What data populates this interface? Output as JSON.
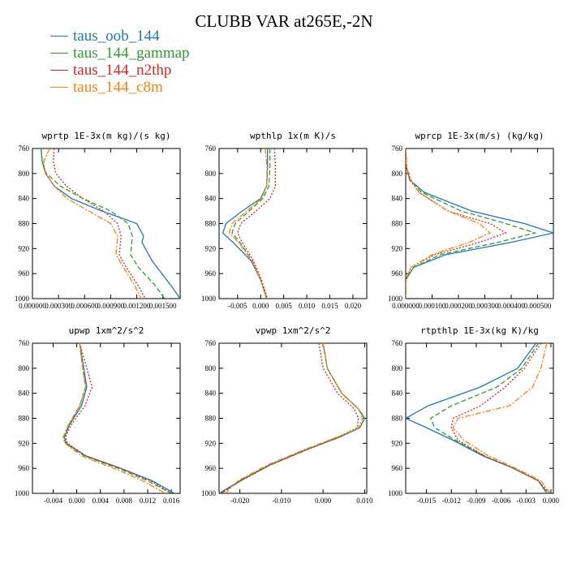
{
  "title": "CLUBB VAR at265E,-2N",
  "legend": [
    {
      "name": "taus_oob_144",
      "color": "#1f77b4",
      "dash": "solid"
    },
    {
      "name": "taus_144_gammap",
      "color": "#2ca02c",
      "dash": "dashed"
    },
    {
      "name": "taus_144_n2thp",
      "color": "#d62728",
      "dash": "dotted"
    },
    {
      "name": "taus_144_c8m",
      "color": "#ff7f0e",
      "dash": "dashdot"
    }
  ],
  "chart_data": [
    {
      "type": "line",
      "title": "wprtp   1E-3x(m kg)/(s kg)",
      "xlim": [
        0.0,
        0.0017
      ],
      "ylim": [
        760,
        1000
      ],
      "xticks": [
        0.0,
        0.0003,
        0.0006,
        0.0009,
        0.0012,
        0.0015
      ],
      "xticklabels": [
        "0.000000",
        "0.000300",
        "0.000600",
        "0.000900",
        "0.001200",
        "0.001500"
      ],
      "yticks": [
        760,
        800,
        840,
        880,
        920,
        960,
        1000
      ],
      "yticklabels": [
        "760",
        "800",
        "840",
        "880",
        "920",
        "960",
        "1000"
      ],
      "series": [
        {
          "name": "taus_oob_144",
          "x": [
            0.0001,
            0.00011,
            0.00015,
            0.00025,
            0.00045,
            0.0008,
            0.0012,
            0.00128,
            0.00126,
            0.00138,
            0.0016,
            0.0017
          ],
          "y": [
            760,
            780,
            800,
            820,
            840,
            860,
            880,
            900,
            910,
            940,
            980,
            1000
          ]
        },
        {
          "name": "taus_144_gammap",
          "x": [
            0.0001,
            0.00011,
            0.00016,
            0.00032,
            0.00058,
            0.0009,
            0.0011,
            0.00115,
            0.00113,
            0.00122,
            0.00142,
            0.00152
          ],
          "y": [
            760,
            780,
            800,
            820,
            840,
            860,
            880,
            900,
            930,
            950,
            980,
            1000
          ]
        },
        {
          "name": "taus_144_n2thp",
          "x": [
            0.00025,
            0.00024,
            0.00027,
            0.00039,
            0.00058,
            0.00082,
            0.00098,
            0.00102,
            0.001,
            0.00108,
            0.00122,
            0.0013
          ],
          "y": [
            760,
            780,
            800,
            820,
            840,
            860,
            880,
            900,
            930,
            950,
            980,
            1000
          ]
        },
        {
          "name": "taus_144_c8m",
          "x": [
            0.0002,
            0.00013,
            0.00015,
            0.00025,
            0.0004,
            0.00065,
            0.0009,
            0.00098,
            0.00096,
            0.00105,
            0.00118,
            0.00125
          ],
          "y": [
            760,
            780,
            800,
            820,
            840,
            860,
            880,
            900,
            930,
            950,
            980,
            1000
          ]
        }
      ]
    },
    {
      "type": "line",
      "title": "wpthlp   1x(m K)/s",
      "xlim": [
        -0.009,
        0.023
      ],
      "ylim": [
        760,
        1000
      ],
      "xticks": [
        -0.005,
        0.0,
        0.005,
        0.01,
        0.015,
        0.02
      ],
      "xticklabels": [
        "-0.005",
        "0.000",
        "0.005",
        "0.010",
        "0.015",
        "0.020"
      ],
      "yticks": [
        760,
        800,
        840,
        880,
        920,
        960,
        1000
      ],
      "yticklabels": [
        "760",
        "800",
        "840",
        "880",
        "920",
        "960",
        "1000"
      ],
      "series": [
        {
          "name": "taus_oob_144",
          "x": [
            0.0015,
            0.0015,
            0.0013,
            0.0,
            -0.004,
            -0.0075,
            -0.0082,
            -0.006,
            -0.002,
            0.0,
            0.0013
          ],
          "y": [
            760,
            790,
            820,
            840,
            860,
            880,
            895,
            910,
            940,
            970,
            1000
          ]
        },
        {
          "name": "taus_144_gammap",
          "x": [
            0.002,
            0.002,
            0.0018,
            0.0005,
            -0.0025,
            -0.0055,
            -0.0062,
            -0.0045,
            -0.0018,
            0.0,
            0.0013
          ],
          "y": [
            760,
            790,
            820,
            840,
            860,
            880,
            895,
            910,
            940,
            970,
            1000
          ]
        },
        {
          "name": "taus_144_n2thp",
          "x": [
            0.003,
            0.0032,
            0.0032,
            0.002,
            -0.001,
            -0.0043,
            -0.005,
            -0.004,
            -0.0015,
            0.0002,
            0.0015
          ],
          "y": [
            760,
            790,
            820,
            840,
            860,
            880,
            895,
            910,
            940,
            970,
            1000
          ]
        },
        {
          "name": "taus_144_c8m",
          "x": [
            0.001,
            0.0014,
            0.0013,
            0.0002,
            -0.003,
            -0.0062,
            -0.0068,
            -0.0048,
            -0.0018,
            0.0,
            0.0013
          ],
          "y": [
            760,
            790,
            820,
            840,
            860,
            880,
            895,
            910,
            940,
            970,
            1000
          ]
        }
      ]
    },
    {
      "type": "line",
      "title": "wprcp   1E-3x(m/s) (kg/kg)",
      "xlim": [
        0.0,
        0.00056
      ],
      "ylim": [
        760,
        1000
      ],
      "xticks": [
        0.0,
        0.0001,
        0.0002,
        0.0003,
        0.0004,
        0.0005
      ],
      "xticklabels": [
        "0.000000",
        "0.000100",
        "0.000200",
        "0.000300",
        "0.000400",
        "0.000500"
      ],
      "yticks": [
        760,
        800,
        840,
        880,
        920,
        960,
        1000
      ],
      "yticklabels": [
        "760",
        "800",
        "840",
        "880",
        "920",
        "960",
        "1000"
      ],
      "series": [
        {
          "name": "taus_oob_144",
          "x": [
            0.0,
            3e-06,
            1.5e-05,
            7e-05,
            0.00025,
            0.00045,
            0.00056,
            0.0004,
            0.00015,
            3e-05,
            0.0,
            0.0
          ],
          "y": [
            760,
            790,
            810,
            830,
            860,
            880,
            895,
            910,
            930,
            950,
            970,
            1000
          ]
        },
        {
          "name": "taus_144_gammap",
          "x": [
            0.0,
            3e-06,
            1.5e-05,
            6e-05,
            0.00021,
            0.00038,
            0.00049,
            0.00035,
            0.00013,
            3e-05,
            0.0,
            0.0
          ],
          "y": [
            760,
            790,
            810,
            830,
            860,
            880,
            895,
            910,
            930,
            950,
            970,
            1000
          ]
        },
        {
          "name": "taus_144_n2thp",
          "x": [
            0.0,
            3e-06,
            1.5e-05,
            5e-05,
            0.00016,
            0.00032,
            0.00038,
            0.00028,
            0.00011,
            2e-05,
            0.0,
            0.0
          ],
          "y": [
            760,
            790,
            810,
            830,
            860,
            880,
            895,
            910,
            930,
            950,
            970,
            1000
          ]
        },
        {
          "name": "taus_144_c8m",
          "x": [
            0.0,
            3e-06,
            2e-05,
            5e-05,
            0.00016,
            0.00028,
            0.00032,
            0.00024,
            0.0001,
            2e-05,
            0.0,
            0.0
          ],
          "y": [
            760,
            790,
            810,
            830,
            860,
            880,
            895,
            910,
            930,
            950,
            970,
            1000
          ]
        }
      ]
    },
    {
      "type": "line",
      "title": "upwp   1xm^2/s^2",
      "xlim": [
        -0.0075,
        0.0175
      ],
      "ylim": [
        760,
        1000
      ],
      "xticks": [
        -0.004,
        0.0,
        0.004,
        0.008,
        0.012,
        0.016
      ],
      "xticklabels": [
        "-0.004",
        "0.000",
        "0.004",
        "0.008",
        "0.012",
        "0.016"
      ],
      "yticks": [
        760,
        800,
        840,
        880,
        920,
        960,
        1000
      ],
      "yticklabels": [
        "760",
        "800",
        "840",
        "880",
        "920",
        "960",
        "1000"
      ],
      "series": [
        {
          "name": "taus_oob_144",
          "x": [
            0.0005,
            0.0012,
            0.0017,
            0.0008,
            -0.0012,
            -0.0021,
            -0.0018,
            0.0015,
            0.0075,
            0.0128,
            0.0165
          ],
          "y": [
            760,
            800,
            830,
            860,
            890,
            910,
            920,
            940,
            960,
            980,
            1000
          ]
        },
        {
          "name": "taus_144_gammap",
          "x": [
            0.0005,
            0.001,
            0.0015,
            0.0005,
            -0.0013,
            -0.0022,
            -0.0019,
            0.0013,
            0.007,
            0.012,
            0.016
          ],
          "y": [
            760,
            800,
            830,
            860,
            890,
            910,
            920,
            940,
            960,
            980,
            1000
          ]
        },
        {
          "name": "taus_144_n2thp",
          "x": [
            0.0005,
            0.0017,
            0.0026,
            0.0014,
            -0.0009,
            -0.0019,
            -0.0016,
            0.0016,
            0.0074,
            0.0125,
            0.016
          ],
          "y": [
            760,
            800,
            830,
            860,
            890,
            910,
            920,
            940,
            960,
            980,
            1000
          ]
        },
        {
          "name": "taus_144_c8m",
          "x": [
            0.0005,
            0.001,
            0.0015,
            0.0005,
            -0.0014,
            -0.0023,
            -0.002,
            0.0008,
            0.0063,
            0.0112,
            0.015
          ],
          "y": [
            760,
            800,
            830,
            860,
            890,
            910,
            920,
            940,
            960,
            980,
            1000
          ]
        }
      ]
    },
    {
      "type": "line",
      "title": "vpwp   1xm^2/s^2",
      "xlim": [
        -0.025,
        0.0105
      ],
      "ylim": [
        760,
        1000
      ],
      "xticks": [
        -0.02,
        -0.01,
        0.0,
        0.01
      ],
      "xticklabels": [
        "-0.020",
        "-0.010",
        "0.000",
        "0.010"
      ],
      "yticks": [
        760,
        800,
        840,
        880,
        920,
        960,
        1000
      ],
      "yticklabels": [
        "760",
        "800",
        "840",
        "880",
        "920",
        "960",
        "1000"
      ],
      "series": [
        {
          "name": "taus_oob_144",
          "x": [
            0.0,
            0.001,
            0.0045,
            0.0085,
            0.01,
            0.0088,
            0.004,
            -0.004,
            -0.013,
            -0.02,
            -0.025
          ],
          "y": [
            760,
            800,
            840,
            865,
            880,
            895,
            910,
            930,
            955,
            980,
            1000
          ]
        },
        {
          "name": "taus_144_gammap",
          "x": [
            0.0,
            0.001,
            0.0045,
            0.0085,
            0.01,
            0.0088,
            0.004,
            -0.0038,
            -0.0128,
            -0.0198,
            -0.0245
          ],
          "y": [
            760,
            800,
            840,
            865,
            880,
            895,
            910,
            930,
            955,
            980,
            1000
          ]
        },
        {
          "name": "taus_144_n2thp",
          "x": [
            -0.001,
            0.0,
            0.0035,
            0.0075,
            0.0085,
            0.0082,
            0.0035,
            -0.0038,
            -0.0128,
            -0.0198,
            -0.0245
          ],
          "y": [
            760,
            800,
            840,
            865,
            880,
            895,
            910,
            930,
            955,
            980,
            1000
          ]
        },
        {
          "name": "taus_144_c8m",
          "x": [
            0.0,
            0.001,
            0.0045,
            0.0085,
            0.0095,
            0.0085,
            0.0035,
            -0.0045,
            -0.0135,
            -0.0205,
            -0.0235
          ],
          "y": [
            760,
            800,
            840,
            865,
            880,
            895,
            910,
            930,
            955,
            980,
            1000
          ]
        }
      ]
    },
    {
      "type": "line",
      "title": "rtpthlp   1E-3x(kg K)/kg",
      "xlim": [
        -0.0175,
        0.0003
      ],
      "ylim": [
        760,
        1000
      ],
      "xticks": [
        -0.015,
        -0.012,
        -0.009,
        -0.006,
        -0.003,
        0.0
      ],
      "xticklabels": [
        "-0.015",
        "-0.012",
        "-0.009",
        "-0.006",
        "-0.003",
        "0.000"
      ],
      "yticks": [
        760,
        800,
        840,
        880,
        920,
        960,
        1000
      ],
      "yticklabels": [
        "760",
        "800",
        "840",
        "880",
        "920",
        "960",
        "1000"
      ],
      "series": [
        {
          "name": "taus_oob_144",
          "x": [
            -0.0018,
            -0.004,
            -0.0085,
            -0.0148,
            -0.0175,
            -0.015,
            -0.0118,
            -0.0082,
            -0.0045,
            -0.0015,
            -0.0005
          ],
          "y": [
            760,
            800,
            830,
            860,
            880,
            895,
            915,
            940,
            960,
            980,
            1000
          ]
        },
        {
          "name": "taus_144_gammap",
          "x": [
            -0.0015,
            -0.0035,
            -0.0065,
            -0.012,
            -0.0145,
            -0.014,
            -0.0115,
            -0.008,
            -0.0045,
            -0.0015,
            -0.0004
          ],
          "y": [
            760,
            800,
            830,
            860,
            880,
            895,
            915,
            940,
            960,
            980,
            1000
          ]
        },
        {
          "name": "taus_144_n2thp",
          "x": [
            -0.0012,
            -0.0032,
            -0.0055,
            -0.0085,
            -0.0118,
            -0.012,
            -0.0112,
            -0.008,
            -0.0045,
            -0.0015,
            -0.0002
          ],
          "y": [
            760,
            800,
            830,
            860,
            880,
            895,
            915,
            940,
            960,
            980,
            1000
          ]
        },
        {
          "name": "taus_144_c8m",
          "x": [
            -0.0005,
            -0.0012,
            -0.0022,
            -0.005,
            -0.0112,
            -0.0118,
            -0.0105,
            -0.0075,
            -0.0042,
            -0.0012,
            -0.0001
          ],
          "y": [
            760,
            800,
            830,
            860,
            880,
            895,
            915,
            940,
            960,
            980,
            1000
          ]
        }
      ]
    }
  ]
}
